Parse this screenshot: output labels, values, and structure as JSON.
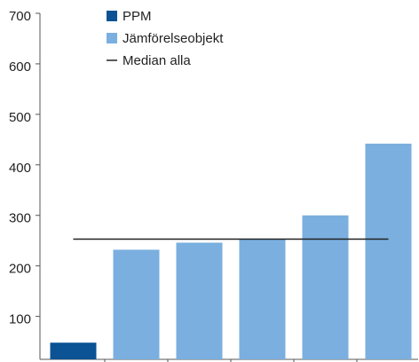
{
  "chart_data": {
    "type": "bar",
    "categories": [
      null,
      null,
      null,
      null,
      null,
      null
    ],
    "series": [
      {
        "name": "PPM",
        "color": "#0b5394",
        "values": [
          48,
          null,
          null,
          null,
          null,
          null
        ]
      },
      {
        "name": "Jämförelseobjekt",
        "color": "#7aafdf",
        "values": [
          null,
          232,
          246,
          253,
          300,
          442
        ]
      }
    ],
    "median": {
      "name": "Median alla",
      "color": "#222222",
      "value": 253
    },
    "ylim": [
      15,
      700
    ],
    "yticks": [
      100,
      200,
      300,
      400,
      500,
      600,
      700
    ],
    "grid": false,
    "legend": "top"
  }
}
